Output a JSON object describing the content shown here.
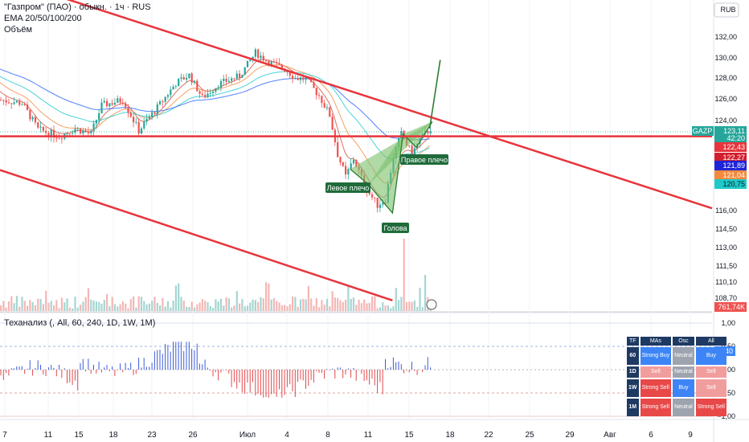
{
  "header": {
    "symbol_line": "\"Газпром\" (ПАО) · обыкн. · 1ч · RUS",
    "ema_line": "EMA 20/50/100/200",
    "volume_line": "Объём"
  },
  "currency": "RUB",
  "price_badges": {
    "symbol": "GAZP",
    "last": "123,11",
    "countdown": "42:20",
    "ema20": "122,43",
    "ema50": "122,27",
    "ema100": "121,89",
    "ema200a": "121,04",
    "ema200b": "120,75",
    "volume": "761,74K"
  },
  "colors": {
    "up": "#26a69a",
    "down": "#ef5350",
    "trend": "#e8343c",
    "pattern_fill": "#7cc06a",
    "pattern_label": "#1f6b3a",
    "ema_blue": "#2962ff",
    "ema_cyan": "#1fc9c9",
    "ema_orange": "#f28a3c",
    "ema_red": "#d24f3a"
  },
  "chart_data": {
    "type": "line",
    "price_axis": {
      "ticks": [
        "132,00",
        "130,00",
        "128,00",
        "126,00",
        "124,00",
        "116,00",
        "114,50",
        "113,00",
        "111,50",
        "110,10",
        "108,70"
      ],
      "tick_values": [
        132.0,
        130.0,
        128.0,
        126.0,
        124.0,
        116.0,
        114.5,
        113.0,
        111.5,
        110.1,
        108.7
      ]
    },
    "x_axis": {
      "ticks": [
        "7",
        "11",
        "15",
        "18",
        "23",
        "26",
        "Июл",
        "4",
        "8",
        "11",
        "15",
        "18",
        "22",
        "25",
        "29",
        "Авг",
        "6",
        "9"
      ]
    },
    "price_path": [
      [
        0,
        125.9
      ],
      [
        8,
        125.6
      ],
      [
        14,
        123.2
      ],
      [
        22,
        122.6
      ],
      [
        28,
        123.3
      ],
      [
        34,
        122.8
      ],
      [
        38,
        125.4
      ],
      [
        46,
        125.9
      ],
      [
        52,
        123.1
      ],
      [
        60,
        125.5
      ],
      [
        66,
        127.5
      ],
      [
        71,
        128.3
      ],
      [
        76,
        126.1
      ],
      [
        82,
        127.4
      ],
      [
        90,
        128.2
      ],
      [
        96,
        130.5
      ],
      [
        101,
        129.6
      ],
      [
        107,
        128.9
      ],
      [
        111,
        128.0
      ],
      [
        115,
        127.9
      ],
      [
        120,
        126.3
      ],
      [
        124,
        124.5
      ],
      [
        127,
        121.0
      ],
      [
        130,
        119.0
      ],
      [
        133,
        120.6
      ],
      [
        136,
        118.9
      ],
      [
        139,
        117.5
      ],
      [
        142,
        116.5
      ],
      [
        145,
        117.0
      ],
      [
        148,
        120.8
      ],
      [
        151,
        122.8
      ],
      [
        155,
        121.0
      ],
      [
        158,
        122.3
      ],
      [
        162,
        123.3
      ]
    ],
    "trend_lines": [
      {
        "from": [
          0,
          137.7
        ],
        "to": [
          270,
          116.2
        ]
      },
      {
        "from": [
          0,
          122.6
        ],
        "to": [
          270,
          122.6
        ]
      },
      {
        "from": [
          0,
          119.6
        ],
        "to": [
          148,
          108.5
        ]
      }
    ],
    "projection_line": {
      "from": [
        162,
        123.3
      ],
      "to": [
        166,
        129.8
      ]
    },
    "pattern": {
      "points": [
        [
          132,
          119.7
        ],
        [
          139,
          118.3
        ],
        [
          148,
          115.8
        ],
        [
          152,
          122.8
        ],
        [
          157,
          121.6
        ],
        [
          163,
          123.9
        ]
      ],
      "labels": [
        {
          "text": "Левое плечо",
          "x": 132,
          "y": 119.7
        },
        {
          "text": "Голова",
          "x": 148,
          "y": 115.8
        },
        {
          "text": "Правое плечо",
          "x": 157,
          "y": 121.6
        }
      ]
    },
    "indicator": {
      "title": "Теханализ (, All, 60, 240, 1D, 1W, 1M)",
      "axis_ticks": [
        "1,00",
        "0,50",
        "0,00",
        "−0,50",
        "−1,00"
      ],
      "tick_values": [
        1.0,
        0.5,
        0.0,
        -0.5,
        -1.0
      ],
      "current_value": "0,40"
    }
  },
  "ta_table": {
    "headers": [
      "TF",
      "MAs",
      "Osc",
      "All"
    ],
    "rows": [
      {
        "tf": "60",
        "mas": "Strong Buy",
        "osc": "Neutral",
        "all": "Buy"
      },
      {
        "tf": "1D",
        "mas": "Sell",
        "osc": "Neutral",
        "all": "Sell"
      },
      {
        "tf": "1W",
        "mas": "Strong Sell",
        "osc": "Buy",
        "all": "Sell"
      },
      {
        "tf": "1M",
        "mas": "Strong Sell",
        "osc": "Neutral",
        "all": "Strong Sell"
      }
    ]
  }
}
